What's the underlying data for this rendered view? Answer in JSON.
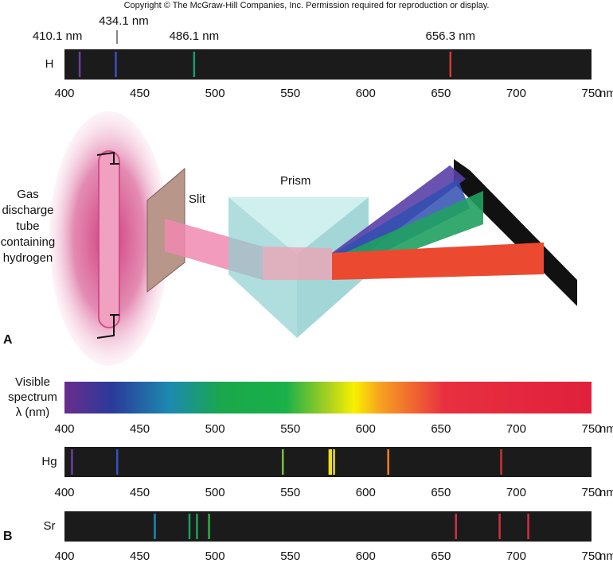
{
  "header": {
    "copyright": "Copyright © The McGraw-Hill Companies, Inc. Permission required for reproduction or display."
  },
  "wavelength_axis": {
    "xlim": [
      400,
      750
    ],
    "ticks": [
      400,
      450,
      500,
      550,
      600,
      650,
      700,
      750
    ],
    "unit": "nm"
  },
  "panel_a": {
    "label": "A",
    "tube_label": [
      "Gas",
      "discharge",
      "tube",
      "containing",
      "hydrogen"
    ],
    "slit_label": "Slit",
    "prism_label": "Prism"
  },
  "panel_b": {
    "label": "B",
    "visible_label": [
      "Visible",
      "spectrum",
      "λ (nm)"
    ]
  },
  "spectra": [
    {
      "name": "H",
      "lines": [
        {
          "value": 410.1,
          "label": "410.1 nm",
          "color": "#6b3fa0"
        },
        {
          "value": 434.1,
          "label": "434.1 nm",
          "color": "#3a4fc0"
        },
        {
          "value": 486.1,
          "label": "486.1 nm",
          "color": "#1a9a70"
        },
        {
          "value": 656.3,
          "label": "656.3 nm",
          "color": "#d03a30"
        }
      ]
    },
    {
      "name": "Hg",
      "lines": [
        {
          "value": 405,
          "color": "#6b3fa0"
        },
        {
          "value": 435,
          "color": "#3a4fc0"
        },
        {
          "value": 545,
          "color": "#7ac040"
        },
        {
          "value": 576,
          "color": "#f0e020"
        },
        {
          "value": 577,
          "color": "#f0e020"
        },
        {
          "value": 579,
          "color": "#f0e020"
        },
        {
          "value": 615,
          "color": "#f08020"
        },
        {
          "value": 690,
          "color": "#d03040"
        }
      ]
    },
    {
      "name": "Sr",
      "lines": [
        {
          "value": 460,
          "color": "#1a88b0"
        },
        {
          "value": 483,
          "color": "#1aa060"
        },
        {
          "value": 488,
          "color": "#20a050"
        },
        {
          "value": 496,
          "color": "#30b040"
        },
        {
          "value": 660,
          "color": "#d03040"
        },
        {
          "value": 689,
          "color": "#d03040"
        },
        {
          "value": 708,
          "color": "#d03040"
        }
      ]
    }
  ]
}
